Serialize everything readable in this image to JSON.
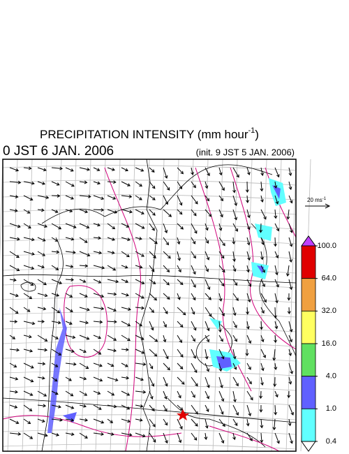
{
  "header": {
    "title": "PRECIPITATION INTENSITY (mm hour",
    "title_exponent": "-1",
    "title_end": ")",
    "valid_time": "0 JST 6 JAN. 2006",
    "init_time": "(init. 9 JST 5 JAN. 2006)"
  },
  "vector_legend": {
    "label": "20 ms",
    "exponent": "-1"
  },
  "colorbar": {
    "top_color": "#c040ff",
    "bottom_color": "#ffffff",
    "colors": [
      "#e00000",
      "#f0a040",
      "#ffff60",
      "#60e060",
      "#6060ff",
      "#60ffff"
    ],
    "ticks": [
      {
        "value": 100,
        "label": "100.0"
      },
      {
        "value": 64,
        "label": "64.0"
      },
      {
        "value": 32,
        "label": "32.0"
      },
      {
        "value": 16,
        "label": "16.0"
      },
      {
        "value": 4,
        "label": "4.0"
      },
      {
        "value": 1,
        "label": "1.0"
      },
      {
        "value": 0.4,
        "label": "0.4"
      }
    ]
  }
}
